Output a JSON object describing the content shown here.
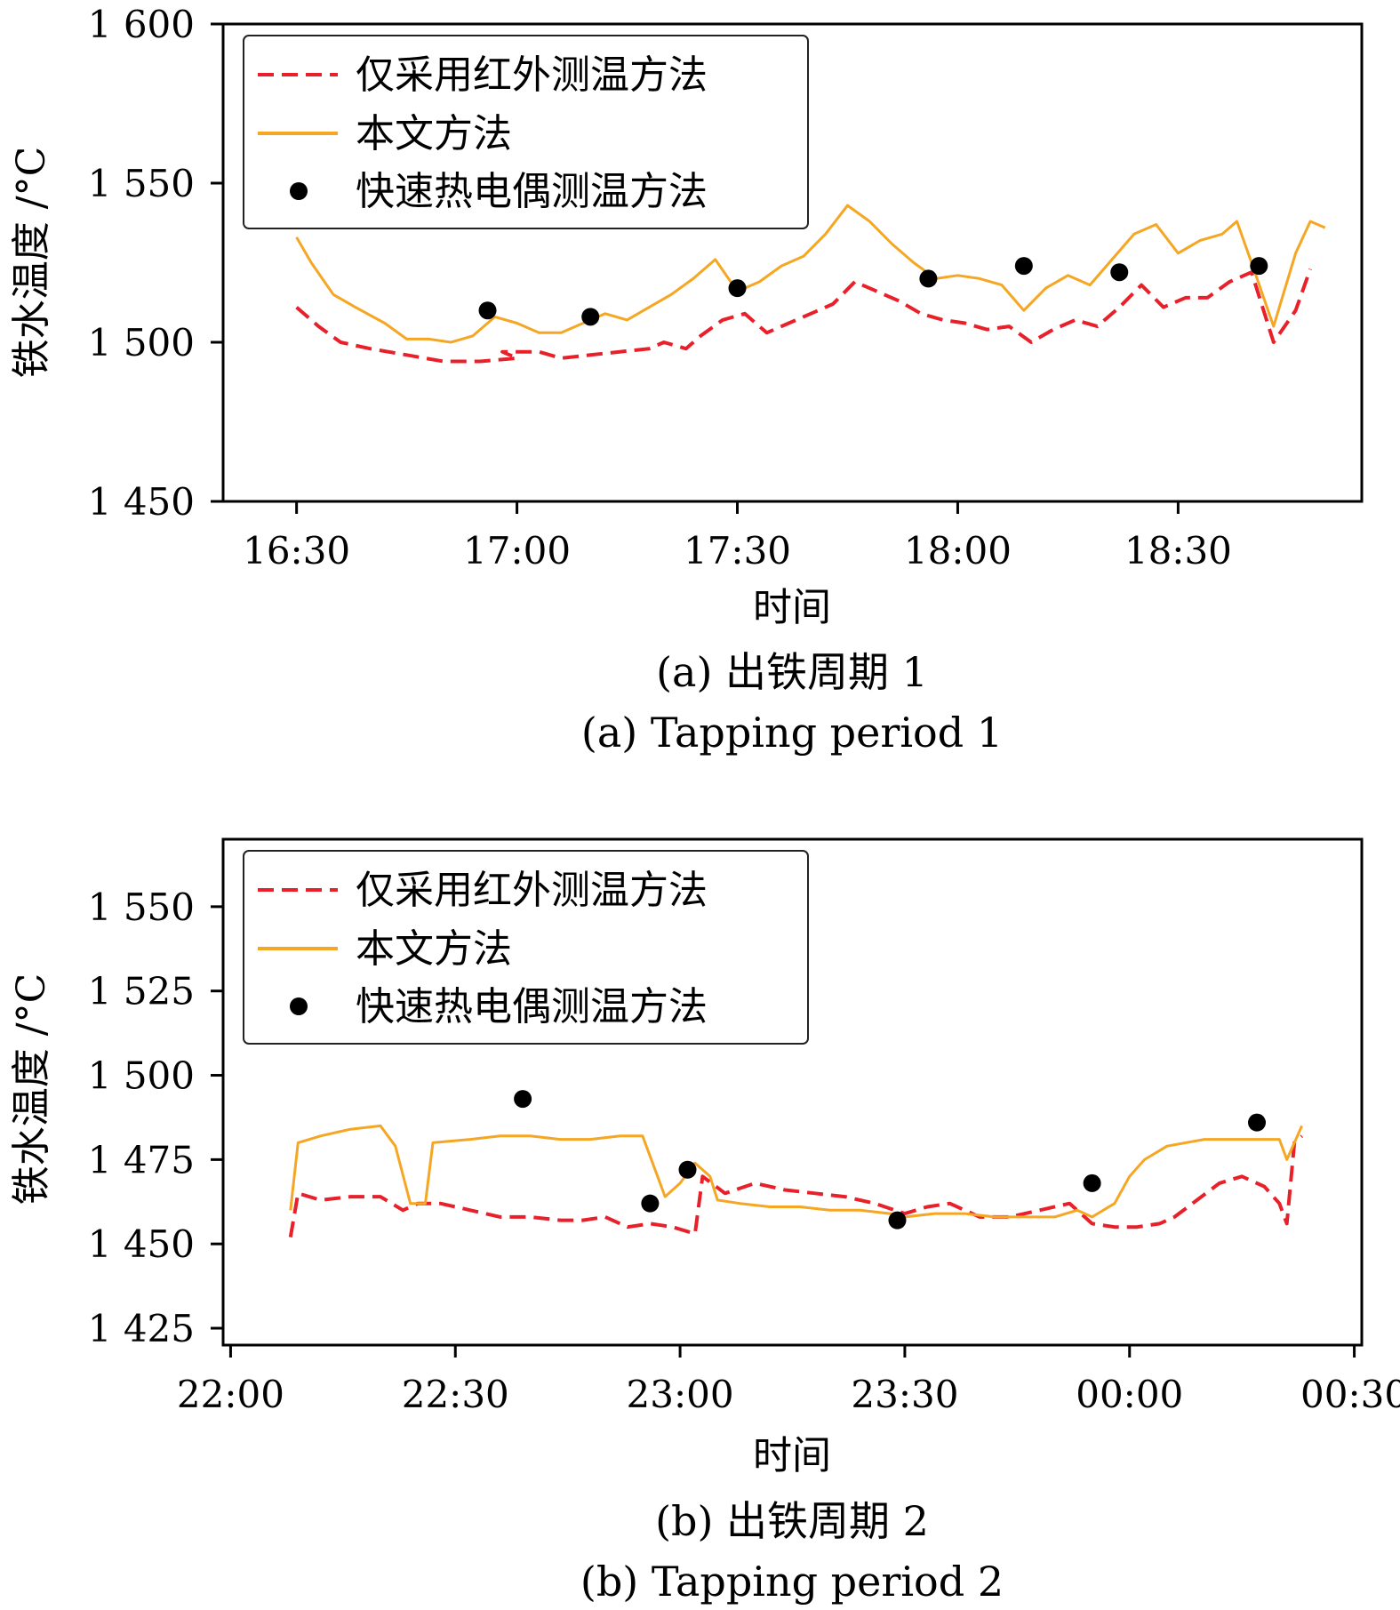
{
  "colors": {
    "infrared": "#e8202a",
    "proposed": "#f5a623",
    "thermocouple": "#000000"
  },
  "chart_data": [
    {
      "type": "line",
      "caption_cn": "(a) 出铁周期 1",
      "caption_en": "(a) Tapping period 1",
      "xlabel": "时间",
      "ylabel": "铁水温度 /°C",
      "xlim": [
        "16:20",
        "18:55"
      ],
      "ylim": [
        1450,
        1600
      ],
      "x_ticks": [
        {
          "t": "16:30",
          "label": "16:30"
        },
        {
          "t": "17:00",
          "label": "17:00"
        },
        {
          "t": "17:30",
          "label": "17:30"
        },
        {
          "t": "18:00",
          "label": "18:00"
        },
        {
          "t": "18:30",
          "label": "18:30"
        }
      ],
      "y_ticks": [
        {
          "v": 1450,
          "label": "1 450"
        },
        {
          "v": 1500,
          "label": "1 500"
        },
        {
          "v": 1550,
          "label": "1 550"
        },
        {
          "v": 1600,
          "label": "1 600"
        }
      ],
      "legend": {
        "position": "top-left",
        "entries": [
          "仅采用红外测温方法",
          "本文方法",
          "快速热电偶测温方法"
        ]
      },
      "series": [
        {
          "name": "仅采用红外测温方法",
          "style": "dashed",
          "points": [
            [
              "16:30",
              1511
            ],
            [
              "16:33",
              1505
            ],
            [
              "16:36",
              1500
            ],
            [
              "16:40",
              1498
            ],
            [
              "16:45",
              1496
            ],
            [
              "16:50",
              1494
            ],
            [
              "16:55",
              1494
            ],
            [
              "17:00",
              1495
            ],
            [
              "16:58",
              1497
            ],
            [
              "17:03",
              1497
            ],
            [
              "17:06",
              1495
            ],
            [
              "17:10",
              1496
            ],
            [
              "17:14",
              1497
            ],
            [
              "17:18",
              1498
            ],
            [
              "17:20",
              1500
            ],
            [
              "17:23",
              1498
            ],
            [
              "17:25",
              1502
            ],
            [
              "17:28",
              1507
            ],
            [
              "17:31",
              1509
            ],
            [
              "17:34",
              1503
            ],
            [
              "17:37",
              1506
            ],
            [
              "17:40",
              1509
            ],
            [
              "17:43",
              1512
            ],
            [
              "17:46",
              1519
            ],
            [
              "17:49",
              1516
            ],
            [
              "17:52",
              1513
            ],
            [
              "17:55",
              1509
            ],
            [
              "17:58",
              1507
            ],
            [
              "18:01",
              1506
            ],
            [
              "18:04",
              1504
            ],
            [
              "18:07",
              1505
            ],
            [
              "18:10",
              1500
            ],
            [
              "18:13",
              1504
            ],
            [
              "18:16",
              1507
            ],
            [
              "18:19",
              1505
            ],
            [
              "18:22",
              1511
            ],
            [
              "18:25",
              1518
            ],
            [
              "18:28",
              1511
            ],
            [
              "18:31",
              1514
            ],
            [
              "18:34",
              1514
            ],
            [
              "18:37",
              1519
            ],
            [
              "18:40",
              1522
            ],
            [
              "18:43",
              1500
            ],
            [
              "18:46",
              1510
            ],
            [
              "18:48",
              1523
            ]
          ]
        },
        {
          "name": "本文方法",
          "style": "solid",
          "points": [
            [
              "16:30",
              1533
            ],
            [
              "16:32",
              1525
            ],
            [
              "16:35",
              1515
            ],
            [
              "16:38",
              1511
            ],
            [
              "16:42",
              1506
            ],
            [
              "16:45",
              1501
            ],
            [
              "16:48",
              1501
            ],
            [
              "16:51",
              1500
            ],
            [
              "16:54",
              1502
            ],
            [
              "16:57",
              1508
            ],
            [
              "17:00",
              1506
            ],
            [
              "17:03",
              1503
            ],
            [
              "17:06",
              1503
            ],
            [
              "17:09",
              1506
            ],
            [
              "17:12",
              1509
            ],
            [
              "17:15",
              1507
            ],
            [
              "17:18",
              1511
            ],
            [
              "17:21",
              1515
            ],
            [
              "17:24",
              1520
            ],
            [
              "17:27",
              1526
            ],
            [
              "17:30",
              1516
            ],
            [
              "17:33",
              1519
            ],
            [
              "17:36",
              1524
            ],
            [
              "17:39",
              1527
            ],
            [
              "17:42",
              1534
            ],
            [
              "17:45",
              1543
            ],
            [
              "17:48",
              1538
            ],
            [
              "17:51",
              1531
            ],
            [
              "17:54",
              1525
            ],
            [
              "17:57",
              1520
            ],
            [
              "18:00",
              1521
            ],
            [
              "18:03",
              1520
            ],
            [
              "18:06",
              1518
            ],
            [
              "18:09",
              1510
            ],
            [
              "18:12",
              1517
            ],
            [
              "18:15",
              1521
            ],
            [
              "18:18",
              1518
            ],
            [
              "18:21",
              1526
            ],
            [
              "18:24",
              1534
            ],
            [
              "18:27",
              1537
            ],
            [
              "18:30",
              1528
            ],
            [
              "18:33",
              1532
            ],
            [
              "18:36",
              1534
            ],
            [
              "18:38",
              1538
            ],
            [
              "18:40",
              1525
            ],
            [
              "18:43",
              1505
            ],
            [
              "18:46",
              1528
            ],
            [
              "18:48",
              1538
            ],
            [
              "18:50",
              1536
            ]
          ]
        },
        {
          "name": "快速热电偶测温方法",
          "style": "marker",
          "points": [
            [
              "16:56",
              1510
            ],
            [
              "17:10",
              1508
            ],
            [
              "17:30",
              1517
            ],
            [
              "17:56",
              1520
            ],
            [
              "18:09",
              1524
            ],
            [
              "18:22",
              1522
            ],
            [
              "18:41",
              1524
            ]
          ]
        }
      ]
    },
    {
      "type": "line",
      "caption_cn": "(b) 出铁周期 2",
      "caption_en": "(b) Tapping period 2",
      "xlabel": "时间",
      "ylabel": "铁水温度 /°C",
      "xlim": [
        "21:59",
        "24:31"
      ],
      "ylim": [
        1420,
        1570
      ],
      "x_ticks": [
        {
          "t": "22:00",
          "label": "22:00"
        },
        {
          "t": "22:30",
          "label": "22:30"
        },
        {
          "t": "23:00",
          "label": "23:00"
        },
        {
          "t": "23:30",
          "label": "23:30"
        },
        {
          "t": "24:00",
          "label": "00:00"
        },
        {
          "t": "24:30",
          "label": "00:30"
        }
      ],
      "y_ticks": [
        {
          "v": 1425,
          "label": "1 425"
        },
        {
          "v": 1450,
          "label": "1 450"
        },
        {
          "v": 1475,
          "label": "1 475"
        },
        {
          "v": 1500,
          "label": "1 500"
        },
        {
          "v": 1525,
          "label": "1 525"
        },
        {
          "v": 1550,
          "label": "1 550"
        }
      ],
      "legend": {
        "position": "top-left",
        "entries": [
          "仅采用红外测温方法",
          "本文方法",
          "快速热电偶测温方法"
        ]
      },
      "series": [
        {
          "name": "仅采用红外测温方法",
          "style": "dashed",
          "points": [
            [
              "22:08",
              1452
            ],
            [
              "22:09",
              1465
            ],
            [
              "22:12",
              1463
            ],
            [
              "22:16",
              1464
            ],
            [
              "22:20",
              1464
            ],
            [
              "22:23",
              1460
            ],
            [
              "22:25",
              1462
            ],
            [
              "22:28",
              1462
            ],
            [
              "22:32",
              1460
            ],
            [
              "22:36",
              1458
            ],
            [
              "22:40",
              1458
            ],
            [
              "22:44",
              1457
            ],
            [
              "22:47",
              1457
            ],
            [
              "22:50",
              1458
            ],
            [
              "22:53",
              1455
            ],
            [
              "22:56",
              1456
            ],
            [
              "22:59",
              1455
            ],
            [
              "23:02",
              1453
            ],
            [
              "23:03",
              1470
            ],
            [
              "23:06",
              1465
            ],
            [
              "23:10",
              1468
            ],
            [
              "23:14",
              1466
            ],
            [
              "23:18",
              1465
            ],
            [
              "23:22",
              1464
            ],
            [
              "23:26",
              1462
            ],
            [
              "23:30",
              1459
            ],
            [
              "23:33",
              1461
            ],
            [
              "23:36",
              1462
            ],
            [
              "23:40",
              1458
            ],
            [
              "23:44",
              1458
            ],
            [
              "23:48",
              1460
            ],
            [
              "23:52",
              1462
            ],
            [
              "23:55",
              1456
            ],
            [
              "23:58",
              1455
            ],
            [
              "24:01",
              1455
            ],
            [
              "24:04",
              1456
            ],
            [
              "24:06",
              1458
            ],
            [
              "24:09",
              1463
            ],
            [
              "24:12",
              1468
            ],
            [
              "24:15",
              1470
            ],
            [
              "24:18",
              1467
            ],
            [
              "24:20",
              1462
            ],
            [
              "24:21",
              1456
            ],
            [
              "24:22",
              1480
            ],
            [
              "24:23",
              1482
            ]
          ]
        },
        {
          "name": "本文方法",
          "style": "solid",
          "points": [
            [
              "22:08",
              1460
            ],
            [
              "22:09",
              1480
            ],
            [
              "22:12",
              1482
            ],
            [
              "22:16",
              1484
            ],
            [
              "22:20",
              1485
            ],
            [
              "22:22",
              1479
            ],
            [
              "22:24",
              1462
            ],
            [
              "22:26",
              1462
            ],
            [
              "22:27",
              1480
            ],
            [
              "22:32",
              1481
            ],
            [
              "22:36",
              1482
            ],
            [
              "22:40",
              1482
            ],
            [
              "22:44",
              1481
            ],
            [
              "22:48",
              1481
            ],
            [
              "22:52",
              1482
            ],
            [
              "22:55",
              1482
            ],
            [
              "22:57",
              1470
            ],
            [
              "22:58",
              1464
            ],
            [
              "23:00",
              1468
            ],
            [
              "23:02",
              1474
            ],
            [
              "23:04",
              1470
            ],
            [
              "23:05",
              1463
            ],
            [
              "23:08",
              1462
            ],
            [
              "23:12",
              1461
            ],
            [
              "23:16",
              1461
            ],
            [
              "23:20",
              1460
            ],
            [
              "23:24",
              1460
            ],
            [
              "23:28",
              1459
            ],
            [
              "23:30",
              1458
            ],
            [
              "23:34",
              1459
            ],
            [
              "23:38",
              1459
            ],
            [
              "23:42",
              1458
            ],
            [
              "23:46",
              1458
            ],
            [
              "23:50",
              1458
            ],
            [
              "23:53",
              1460
            ],
            [
              "23:55",
              1458
            ],
            [
              "23:58",
              1462
            ],
            [
              "24:00",
              1470
            ],
            [
              "24:02",
              1475
            ],
            [
              "24:05",
              1479
            ],
            [
              "24:10",
              1481
            ],
            [
              "24:15",
              1481
            ],
            [
              "24:18",
              1481
            ],
            [
              "24:20",
              1481
            ],
            [
              "24:21",
              1475
            ],
            [
              "24:22",
              1480
            ],
            [
              "24:23",
              1485
            ]
          ]
        },
        {
          "name": "快速热电偶测温方法",
          "style": "marker",
          "points": [
            [
              "22:39",
              1493
            ],
            [
              "22:56",
              1462
            ],
            [
              "23:01",
              1472
            ],
            [
              "23:29",
              1457
            ],
            [
              "23:55",
              1468
            ],
            [
              "24:17",
              1486
            ]
          ]
        }
      ]
    }
  ]
}
